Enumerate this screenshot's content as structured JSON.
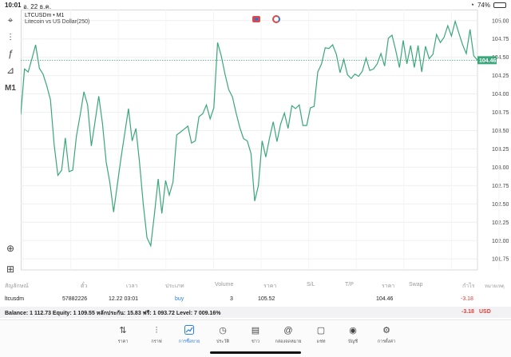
{
  "status": {
    "time": "10:01",
    "date": "อ. 22 ธ.ค.",
    "battery": "74%",
    "battery_level": 0.74,
    "wifi_icon": "wifi-icon"
  },
  "toolbar": {
    "items": [
      {
        "name": "crosshair-icon",
        "glyph": "⌖"
      },
      {
        "name": "chart-type-icon",
        "glyph": "⫶"
      },
      {
        "name": "indicators-icon",
        "glyph": "ƒ"
      },
      {
        "name": "objects-icon",
        "glyph": "⊿"
      },
      {
        "name": "timeframe",
        "glyph": "M1"
      },
      {
        "name": "zoom-icon",
        "glyph": "⊕"
      },
      {
        "name": "add-chart-icon",
        "glyph": "⊞"
      }
    ]
  },
  "chart": {
    "symbol_title": "LTCUSDm • M1",
    "symbol_sub": "Litecoin vs US Dollar(250)",
    "line_color": "#3aa77a",
    "current_price": "104.46",
    "current_price_value": 104.46,
    "price_label_bg": "#3aa77a"
  },
  "chart_data": {
    "type": "line",
    "ylim": [
      101.6,
      105.15
    ],
    "yticks": [
      105.0,
      104.75,
      104.5,
      104.25,
      104.0,
      103.75,
      103.5,
      103.25,
      103.0,
      102.75,
      102.5,
      102.25,
      102.0,
      101.75
    ],
    "ytick_labels": [
      "105.00",
      "104.75",
      "104.50",
      "104.25",
      "104.00",
      "103.75",
      "103.50",
      "103.25",
      "103.00",
      "102.75",
      "102.50",
      "102.25",
      "102.00",
      "101.75"
    ],
    "xticks": [
      "22 Dec 00:49",
      "22 Dec 01:01",
      "22 Dec 01:13",
      "22 Dec 01:25",
      "22 Dec 01:37",
      "22 Dec 01:49",
      "22 Dec 02:01",
      "22 Dec 02:13",
      "22 Dec 02:25",
      "22 Dec 02:37",
      "22 Dec 02:49",
      "22 Dec 03:0"
    ],
    "series": [
      {
        "values": [
          103.72,
          104.34,
          104.3,
          104.48,
          104.67,
          104.35,
          104.27,
          104.11,
          103.92,
          103.3,
          102.89,
          102.96,
          103.4,
          102.94,
          102.96,
          103.43,
          103.71,
          104.03,
          103.85,
          103.29,
          103.62,
          103.97,
          103.6,
          103.07,
          102.79,
          102.39,
          102.76,
          103.13,
          103.46,
          103.8,
          103.36,
          103.53,
          103.06,
          102.49,
          102.04,
          101.93,
          102.36,
          102.84,
          102.37,
          102.82,
          102.62,
          102.8,
          103.44,
          103.48,
          103.52,
          103.56,
          103.33,
          103.36,
          103.69,
          103.73,
          103.85,
          103.66,
          103.81,
          104.7,
          104.52,
          104.27,
          104.06,
          103.96,
          103.74,
          103.54,
          103.39,
          103.36,
          103.19,
          102.54,
          102.75,
          103.36,
          103.14,
          103.4,
          103.62,
          103.35,
          103.59,
          103.74,
          103.53,
          103.84,
          103.8,
          103.85,
          103.57,
          103.57,
          103.81,
          103.83,
          104.3,
          104.41,
          104.63,
          104.62,
          104.67,
          104.54,
          104.29,
          104.47,
          104.26,
          104.21,
          104.27,
          104.24,
          104.31,
          104.49,
          104.32,
          104.34,
          104.41,
          104.55,
          104.38,
          104.76,
          104.8,
          104.59,
          104.36,
          104.73,
          104.41,
          104.66,
          104.36,
          104.66,
          104.3,
          104.65,
          104.48,
          104.54,
          104.81,
          104.7,
          104.77,
          104.93,
          104.79,
          104.99,
          104.83,
          104.67,
          104.55,
          104.88,
          104.52,
          104.46
        ]
      }
    ],
    "grid": true
  },
  "positions": {
    "headers": [
      "สัญลักษณ์",
      "ตั๋ว",
      "เวลา",
      "ประเภท",
      "Volume",
      "ราคา",
      "S/L",
      "T/P",
      "ราคา",
      "Swap",
      "กำไร",
      "หมายเหตุ"
    ],
    "row": {
      "symbol": "ltcusdm",
      "ticket": "57882226",
      "time": "12.22 03:01",
      "type": "buy",
      "volume": "3",
      "open_price": "105.52",
      "current_price": "104.46",
      "profit": "-3.18"
    }
  },
  "balance": {
    "text": "Balance: 1 112.73 Equity: 1 109.55 หลักประกัน: 15.83 ฟรี: 1 093.72 Level: 7 009.16%",
    "profit": "-3.18",
    "currency": "USD"
  },
  "tabs": [
    {
      "name": "tab-quotes",
      "icon": "⇅",
      "label": "ราคา",
      "active": false
    },
    {
      "name": "tab-chart",
      "icon": "⫶",
      "label": "กราฟ",
      "active": false
    },
    {
      "name": "tab-trade",
      "icon": "📈",
      "label": "การซื้อขาย",
      "active": true
    },
    {
      "name": "tab-history",
      "icon": "◷",
      "label": "ประวัติ",
      "active": false
    },
    {
      "name": "tab-news",
      "icon": "▤",
      "label": "ข่าว",
      "active": false
    },
    {
      "name": "tab-mailbox",
      "icon": "@",
      "label": "กล่องจดหมาย",
      "active": false
    },
    {
      "name": "tab-chat",
      "icon": "▢",
      "label": "แชท",
      "active": false
    },
    {
      "name": "tab-accounts",
      "icon": "◉",
      "label": "บัญชี",
      "active": false
    },
    {
      "name": "tab-settings",
      "icon": "⚙",
      "label": "การตั้งค่า",
      "active": false
    }
  ]
}
